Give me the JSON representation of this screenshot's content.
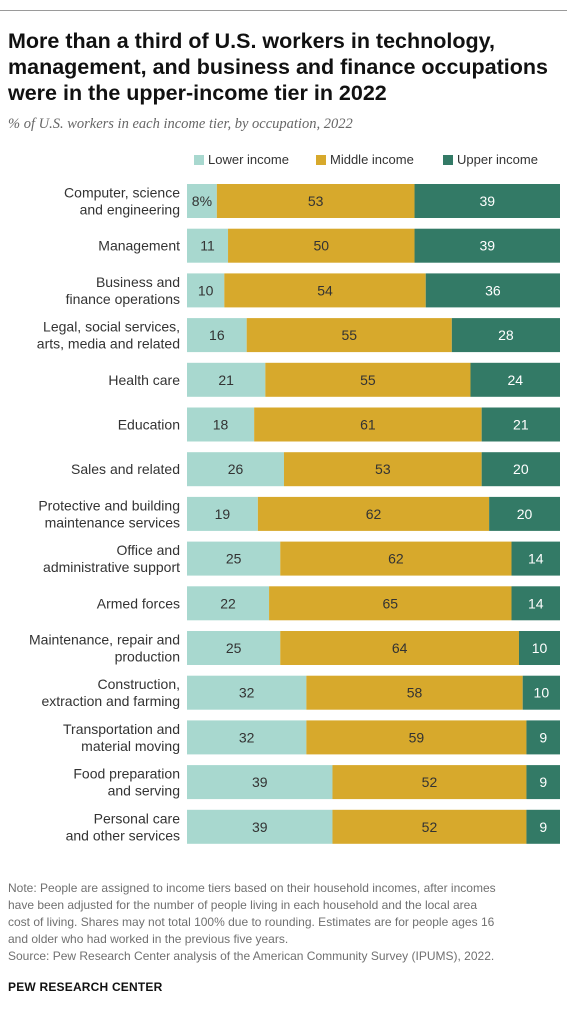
{
  "title": "More than a third of U.S. workers in technology, management, and business and finance occupations were in the upper-income tier in 2022",
  "subtitle": "% of U.S. workers in each income tier, by occupation, 2022",
  "note_lines": [
    "Note: People are assigned to income tiers based on their household incomes, after incomes",
    "have been adjusted for the number of people living in each household and the local area",
    "cost of living. Shares may not total 100% due to rounding. Estimates are for people ages 16",
    "and older who had worked in the previous five years.",
    "Source: Pew Research Center analysis of the American Community Survey (IPUMS), 2022."
  ],
  "brand": "PEW RESEARCH CENTER",
  "colors": {
    "lower": "#a8d8cf",
    "middle": "#d7a92c",
    "upper": "#337a66",
    "lower_text": "#333333",
    "middle_text": "#333333",
    "upper_text": "#ffffff"
  },
  "chart_data": {
    "type": "bar",
    "orientation": "horizontal-stacked",
    "categories": [
      [
        "Computer, science",
        "and engineering"
      ],
      [
        "Management"
      ],
      [
        "Business and",
        "finance operations"
      ],
      [
        "Legal, social services,",
        "arts, media and related"
      ],
      [
        "Health care"
      ],
      [
        "Education"
      ],
      [
        "Sales and related"
      ],
      [
        "Protective and building",
        "maintenance services"
      ],
      [
        "Office and",
        "administrative support"
      ],
      [
        "Armed forces"
      ],
      [
        "Maintenance, repair and",
        "production"
      ],
      [
        "Construction,",
        "extraction and farming"
      ],
      [
        "Transportation and",
        "material moving"
      ],
      [
        "Food preparation",
        "and serving"
      ],
      [
        "Personal care",
        "and other services"
      ]
    ],
    "series": [
      {
        "key": "lower",
        "name": "Lower income",
        "values": [
          8,
          11,
          10,
          16,
          21,
          18,
          26,
          19,
          25,
          22,
          25,
          32,
          32,
          39,
          39
        ],
        "labels": [
          "8%",
          "11",
          "10",
          "16",
          "21",
          "18",
          "26",
          "19",
          "25",
          "22",
          "25",
          "32",
          "32",
          "39",
          "39"
        ]
      },
      {
        "key": "middle",
        "name": "Middle income",
        "values": [
          53,
          50,
          54,
          55,
          55,
          61,
          53,
          62,
          62,
          65,
          64,
          58,
          59,
          52,
          52
        ],
        "labels": [
          "53",
          "50",
          "54",
          "55",
          "55",
          "61",
          "53",
          "62",
          "62",
          "65",
          "64",
          "58",
          "59",
          "52",
          "52"
        ]
      },
      {
        "key": "upper",
        "name": "Upper income",
        "values": [
          39,
          39,
          36,
          28,
          24,
          21,
          20,
          20,
          14,
          14,
          10,
          10,
          9,
          9,
          9
        ],
        "labels": [
          "39",
          "39",
          "36",
          "28",
          "24",
          "21",
          "20",
          "20",
          "14",
          "14",
          "10",
          "10",
          "9",
          "9",
          "9"
        ]
      }
    ],
    "legend_position": "top",
    "grid": false
  }
}
